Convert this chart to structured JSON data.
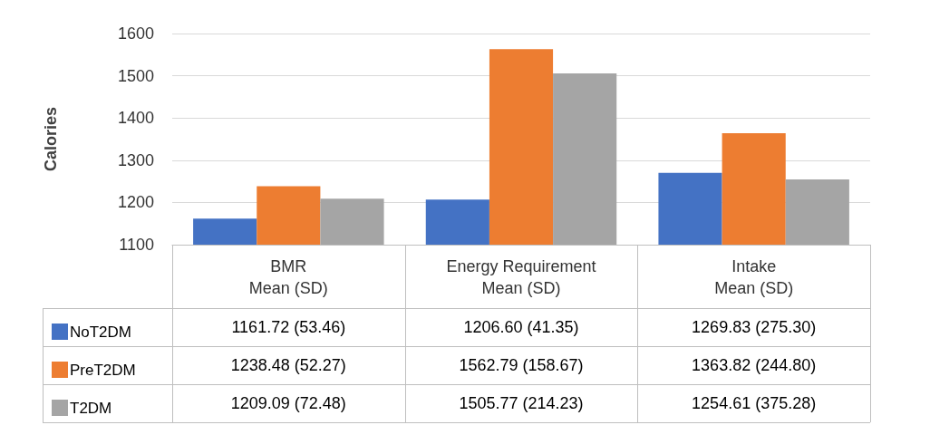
{
  "chart_data": {
    "type": "bar",
    "ylabel": "Calories",
    "categories": [
      "BMR\nMean (SD)",
      "Energy Requirement\nMean (SD)",
      "Intake\nMean (SD)"
    ],
    "series": [
      {
        "name": "NoT2DM",
        "color": "#4472c4",
        "values": [
          1161.72,
          1206.6,
          1269.83
        ],
        "value_labels": [
          "1161.72 (53.46)",
          "1206.60 (41.35)",
          "1269.83 (275.30)"
        ]
      },
      {
        "name": "PreT2DM",
        "color": "#ed7d31",
        "values": [
          1238.48,
          1562.79,
          1363.82
        ],
        "value_labels": [
          "1238.48 (52.27)",
          "1562.79 (158.67)",
          "1363.82 (244.80)"
        ]
      },
      {
        "name": "T2DM",
        "color": "#a5a5a5",
        "values": [
          1209.09,
          1505.77,
          1254.61
        ],
        "value_labels": [
          "1209.09 (72.48)",
          "1505.77 (214.23)",
          "1254.61 (375.28)"
        ]
      }
    ],
    "ylim": [
      1100,
      1600
    ],
    "yticks": [
      1100,
      1200,
      1300,
      1400,
      1500,
      1600
    ],
    "grid": "y",
    "legend": "bottom left"
  }
}
